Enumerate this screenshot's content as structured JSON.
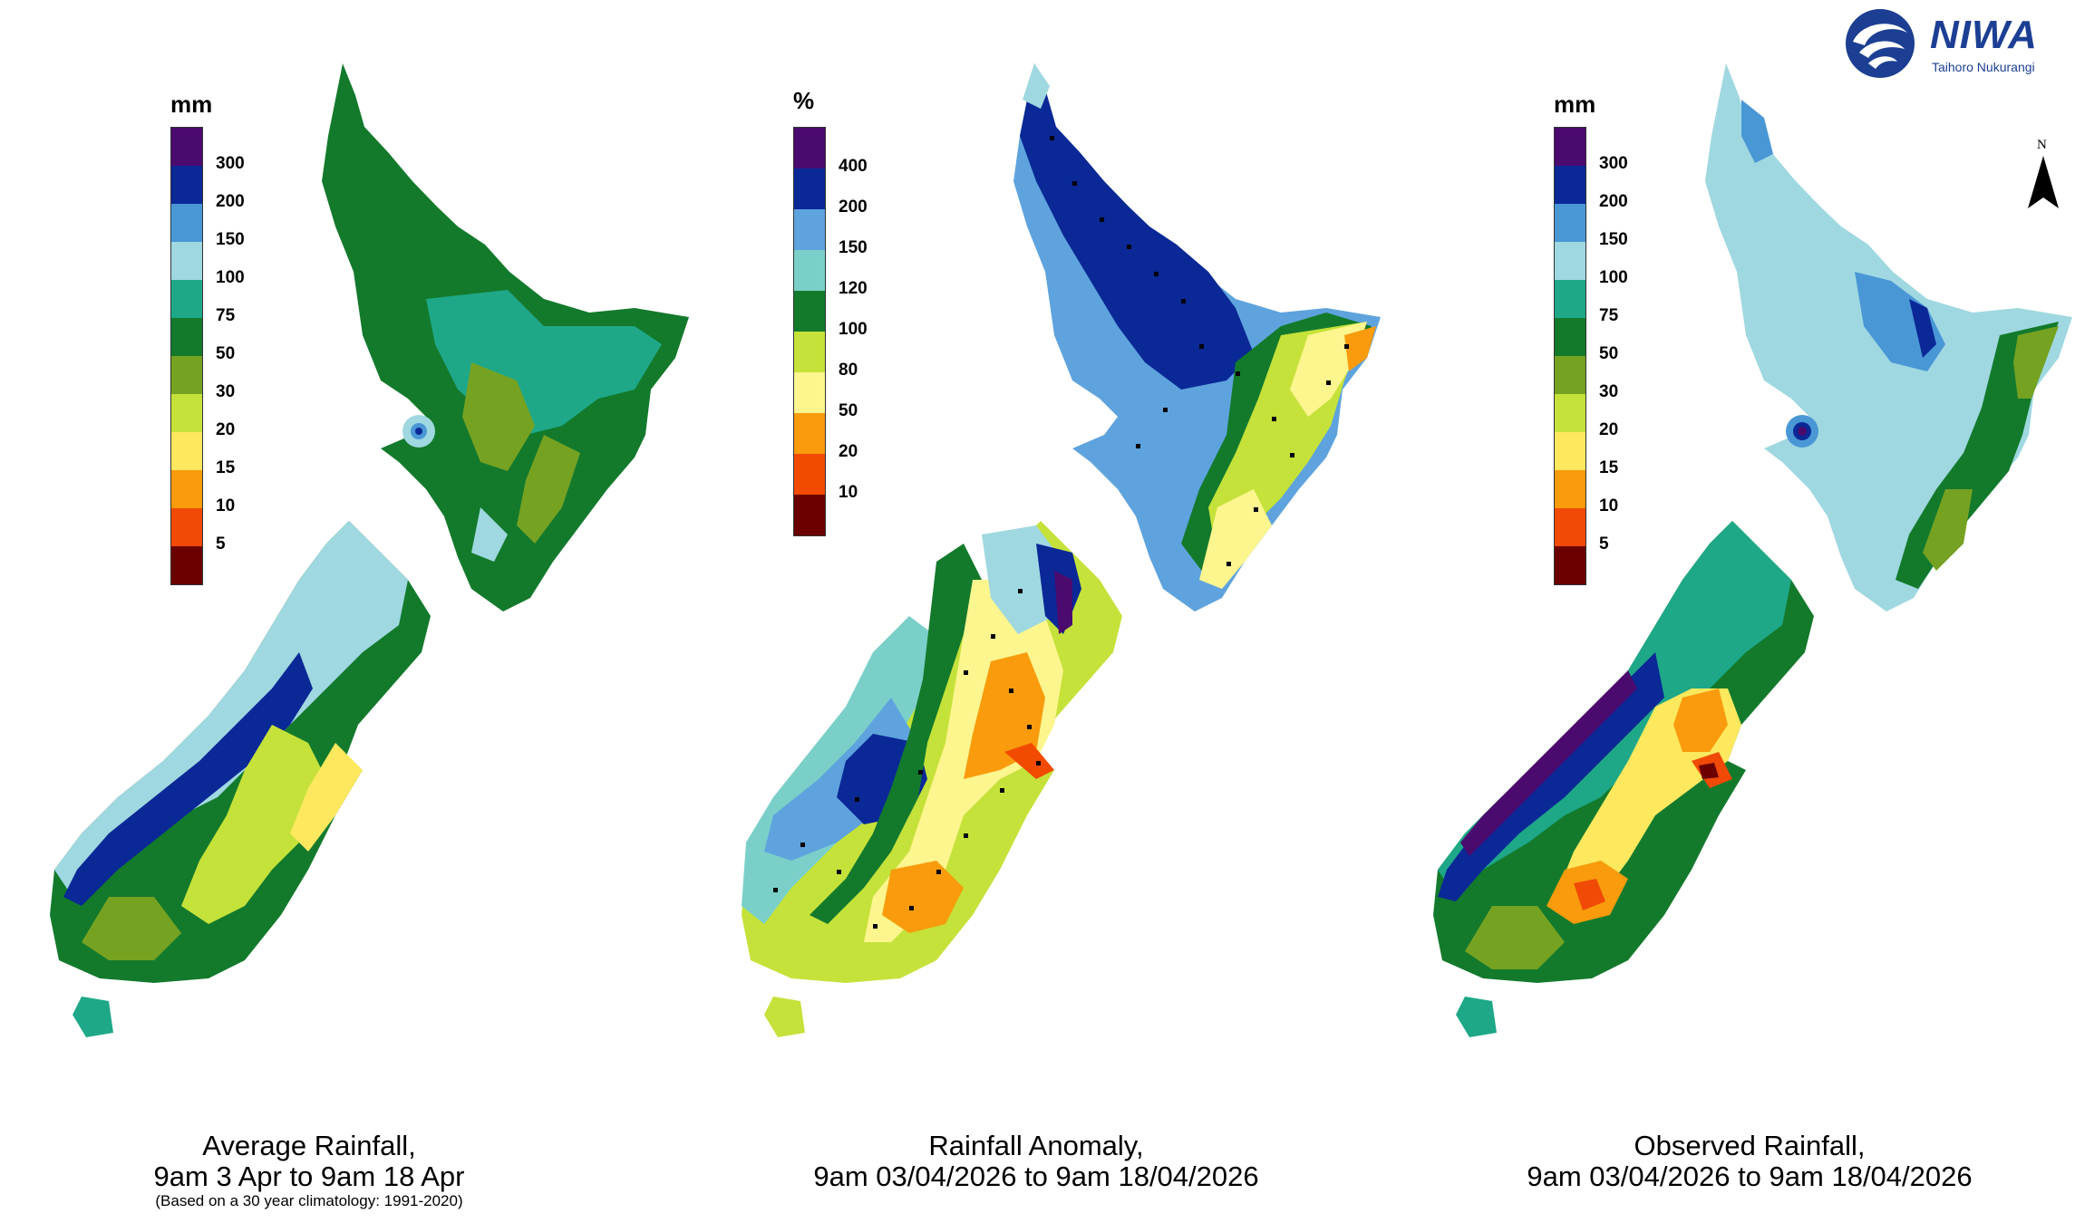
{
  "logo": {
    "name": "NIWA",
    "tagline": "Taihoro Nukurangi"
  },
  "north_arrow": {
    "label": "N"
  },
  "palettes": {
    "rain_mm": [
      "#4b0a6e",
      "#0a2896",
      "#4a97d6",
      "#9fd8e0",
      "#1ea888",
      "#137a2c",
      "#76a222",
      "#c5e23a",
      "#fde85e",
      "#f99b0c",
      "#f04a06",
      "#6b0000"
    ],
    "anomaly": [
      "#4b0a6e",
      "#0a2896",
      "#5ea3de",
      "#7ad0c8",
      "#137a2c",
      "#c5e23a",
      "#fdf58e",
      "#f99b0c",
      "#f24b00",
      "#6b0000"
    ]
  },
  "panels": [
    {
      "id": "average",
      "unit": "mm",
      "ticks": [
        "300",
        "200",
        "150",
        "100",
        "75",
        "50",
        "30",
        "20",
        "15",
        "10",
        "5"
      ],
      "caption": [
        "Average Rainfall,",
        "9am 3 Apr to 9am 18 Apr"
      ],
      "subcaption": "(Based on a 30 year climatology: 1991-2020)"
    },
    {
      "id": "anomaly",
      "unit": "%",
      "ticks": [
        "400",
        "200",
        "150",
        "120",
        "100",
        "80",
        "50",
        "20",
        "10"
      ],
      "caption": [
        "Rainfall Anomaly,",
        "9am 03/04/2026 to 9am 18/04/2026"
      ],
      "subcaption": ""
    },
    {
      "id": "observed",
      "unit": "mm",
      "ticks": [
        "300",
        "200",
        "150",
        "100",
        "75",
        "50",
        "30",
        "20",
        "15",
        "10",
        "5"
      ],
      "caption": [
        "Observed Rainfall,",
        "9am 03/04/2026 to 9am 18/04/2026"
      ],
      "subcaption": ""
    }
  ]
}
